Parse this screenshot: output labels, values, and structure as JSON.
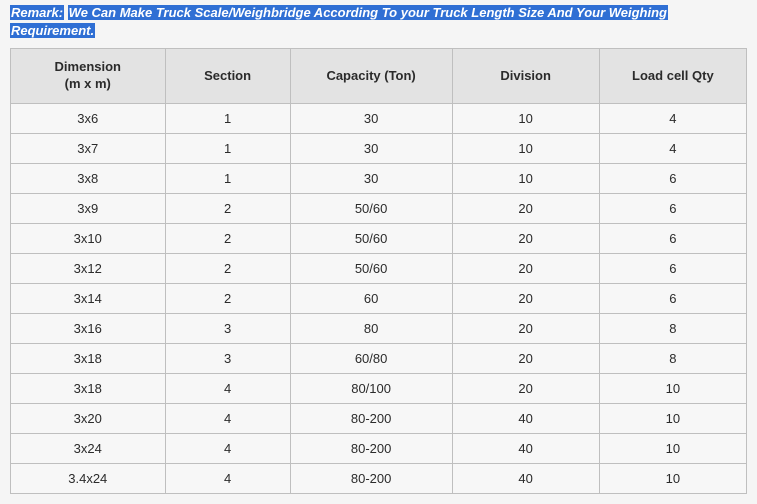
{
  "remark": {
    "prefix": "Remark:",
    "line1": "We Can Make Truck Scale/Weighbridge According To your Truck Length Size And Your Weighing",
    "line2": "Requirement."
  },
  "table": {
    "headers": {
      "dimension_l1": "Dimension",
      "dimension_l2": "(m x m)",
      "section": "Section",
      "capacity": "Capacity (Ton)",
      "division": "Division",
      "loadcell": "Load cell Qty"
    },
    "rows": [
      {
        "dim": "3x6",
        "section": "1",
        "capacity": "30",
        "division": "10",
        "qty": "4"
      },
      {
        "dim": "3x7",
        "section": "1",
        "capacity": "30",
        "division": "10",
        "qty": "4"
      },
      {
        "dim": "3x8",
        "section": "1",
        "capacity": "30",
        "division": "10",
        "qty": "6"
      },
      {
        "dim": "3x9",
        "section": "2",
        "capacity": "50/60",
        "division": "20",
        "qty": "6"
      },
      {
        "dim": "3x10",
        "section": "2",
        "capacity": "50/60",
        "division": "20",
        "qty": "6"
      },
      {
        "dim": "3x12",
        "section": "2",
        "capacity": "50/60",
        "division": "20",
        "qty": "6"
      },
      {
        "dim": "3x14",
        "section": "2",
        "capacity": "60",
        "division": "20",
        "qty": "6"
      },
      {
        "dim": "3x16",
        "section": "3",
        "capacity": "80",
        "division": "20",
        "qty": "8"
      },
      {
        "dim": "3x18",
        "section": "3",
        "capacity": "60/80",
        "division": "20",
        "qty": "8"
      },
      {
        "dim": "3x18",
        "section": "4",
        "capacity": "80/100",
        "division": "20",
        "qty": "10"
      },
      {
        "dim": "3x20",
        "section": "4",
        "capacity": "80-200",
        "division": "40",
        "qty": "10"
      },
      {
        "dim": "3x24",
        "section": "4",
        "capacity": "80-200",
        "division": "40",
        "qty": "10"
      },
      {
        "dim": "3.4x24",
        "section": "4",
        "capacity": "80-200",
        "division": "40",
        "qty": "10"
      }
    ]
  },
  "style": {
    "highlight_bg": "#2f6fd4",
    "highlight_text": "#ffffff",
    "remark_color": "#0b2f6e",
    "border_color": "#bfbfbf",
    "header_bg": "#e3e3e3",
    "cell_bg": "#f7f7f7",
    "font_size_header": 13,
    "font_size_cell": 13
  }
}
